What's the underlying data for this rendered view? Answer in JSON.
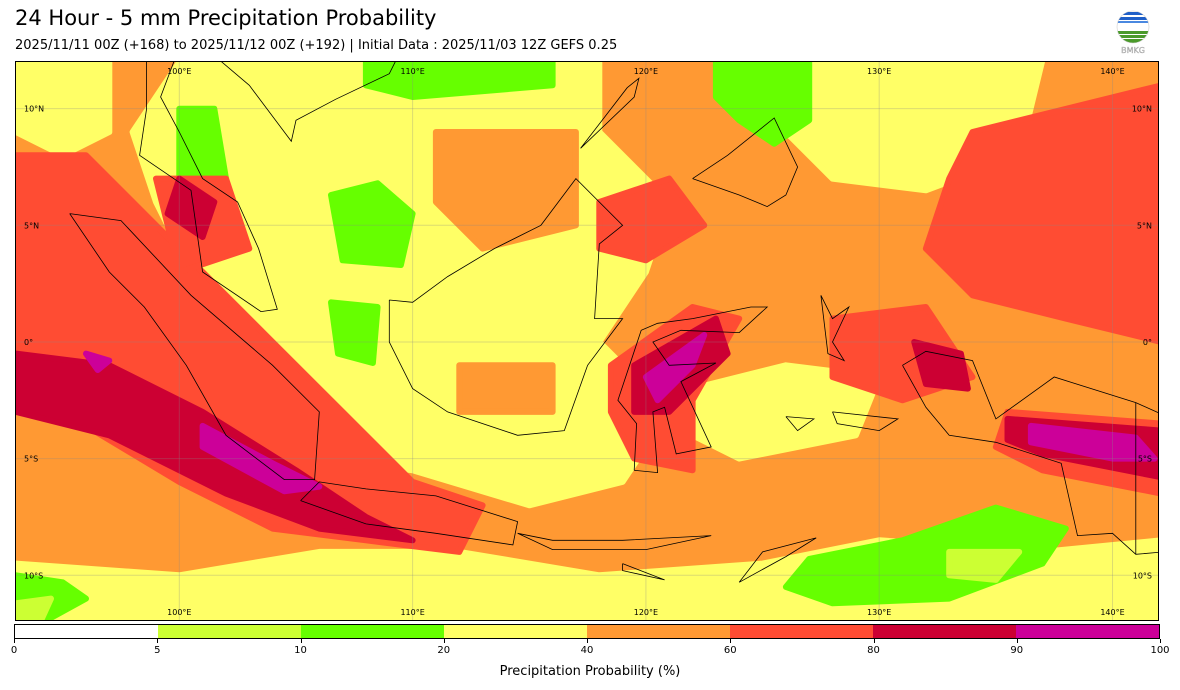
{
  "header": {
    "title": "24 Hour - 5 mm Precipitation Probability",
    "subtitle": "2025/11/11 00Z (+168) to 2025/11/12 00Z (+192) | Initial Data : 2025/11/03 12Z GEFS 0.25"
  },
  "logo": {
    "text": "BMKG"
  },
  "map": {
    "lon_labels": [
      "100°E",
      "110°E",
      "120°E",
      "130°E",
      "140°E"
    ],
    "lon_values": [
      100,
      110,
      120,
      130,
      140
    ],
    "lat_labels": [
      "10°N",
      "5°N",
      "0°",
      "5°S",
      "10°S"
    ],
    "lat_values": [
      10,
      5,
      0,
      -5,
      -10
    ]
  },
  "colorbar": {
    "ticks": [
      "0",
      "5",
      "10",
      "20",
      "40",
      "60",
      "80",
      "90",
      "100"
    ],
    "colors": [
      "#ffffff",
      "#ccff33",
      "#66ff00",
      "#ffff66",
      "#ff9933",
      "#ff4c33",
      "#cc0033",
      "#cc0099"
    ],
    "label": "Precipitation Probability (%)"
  }
}
